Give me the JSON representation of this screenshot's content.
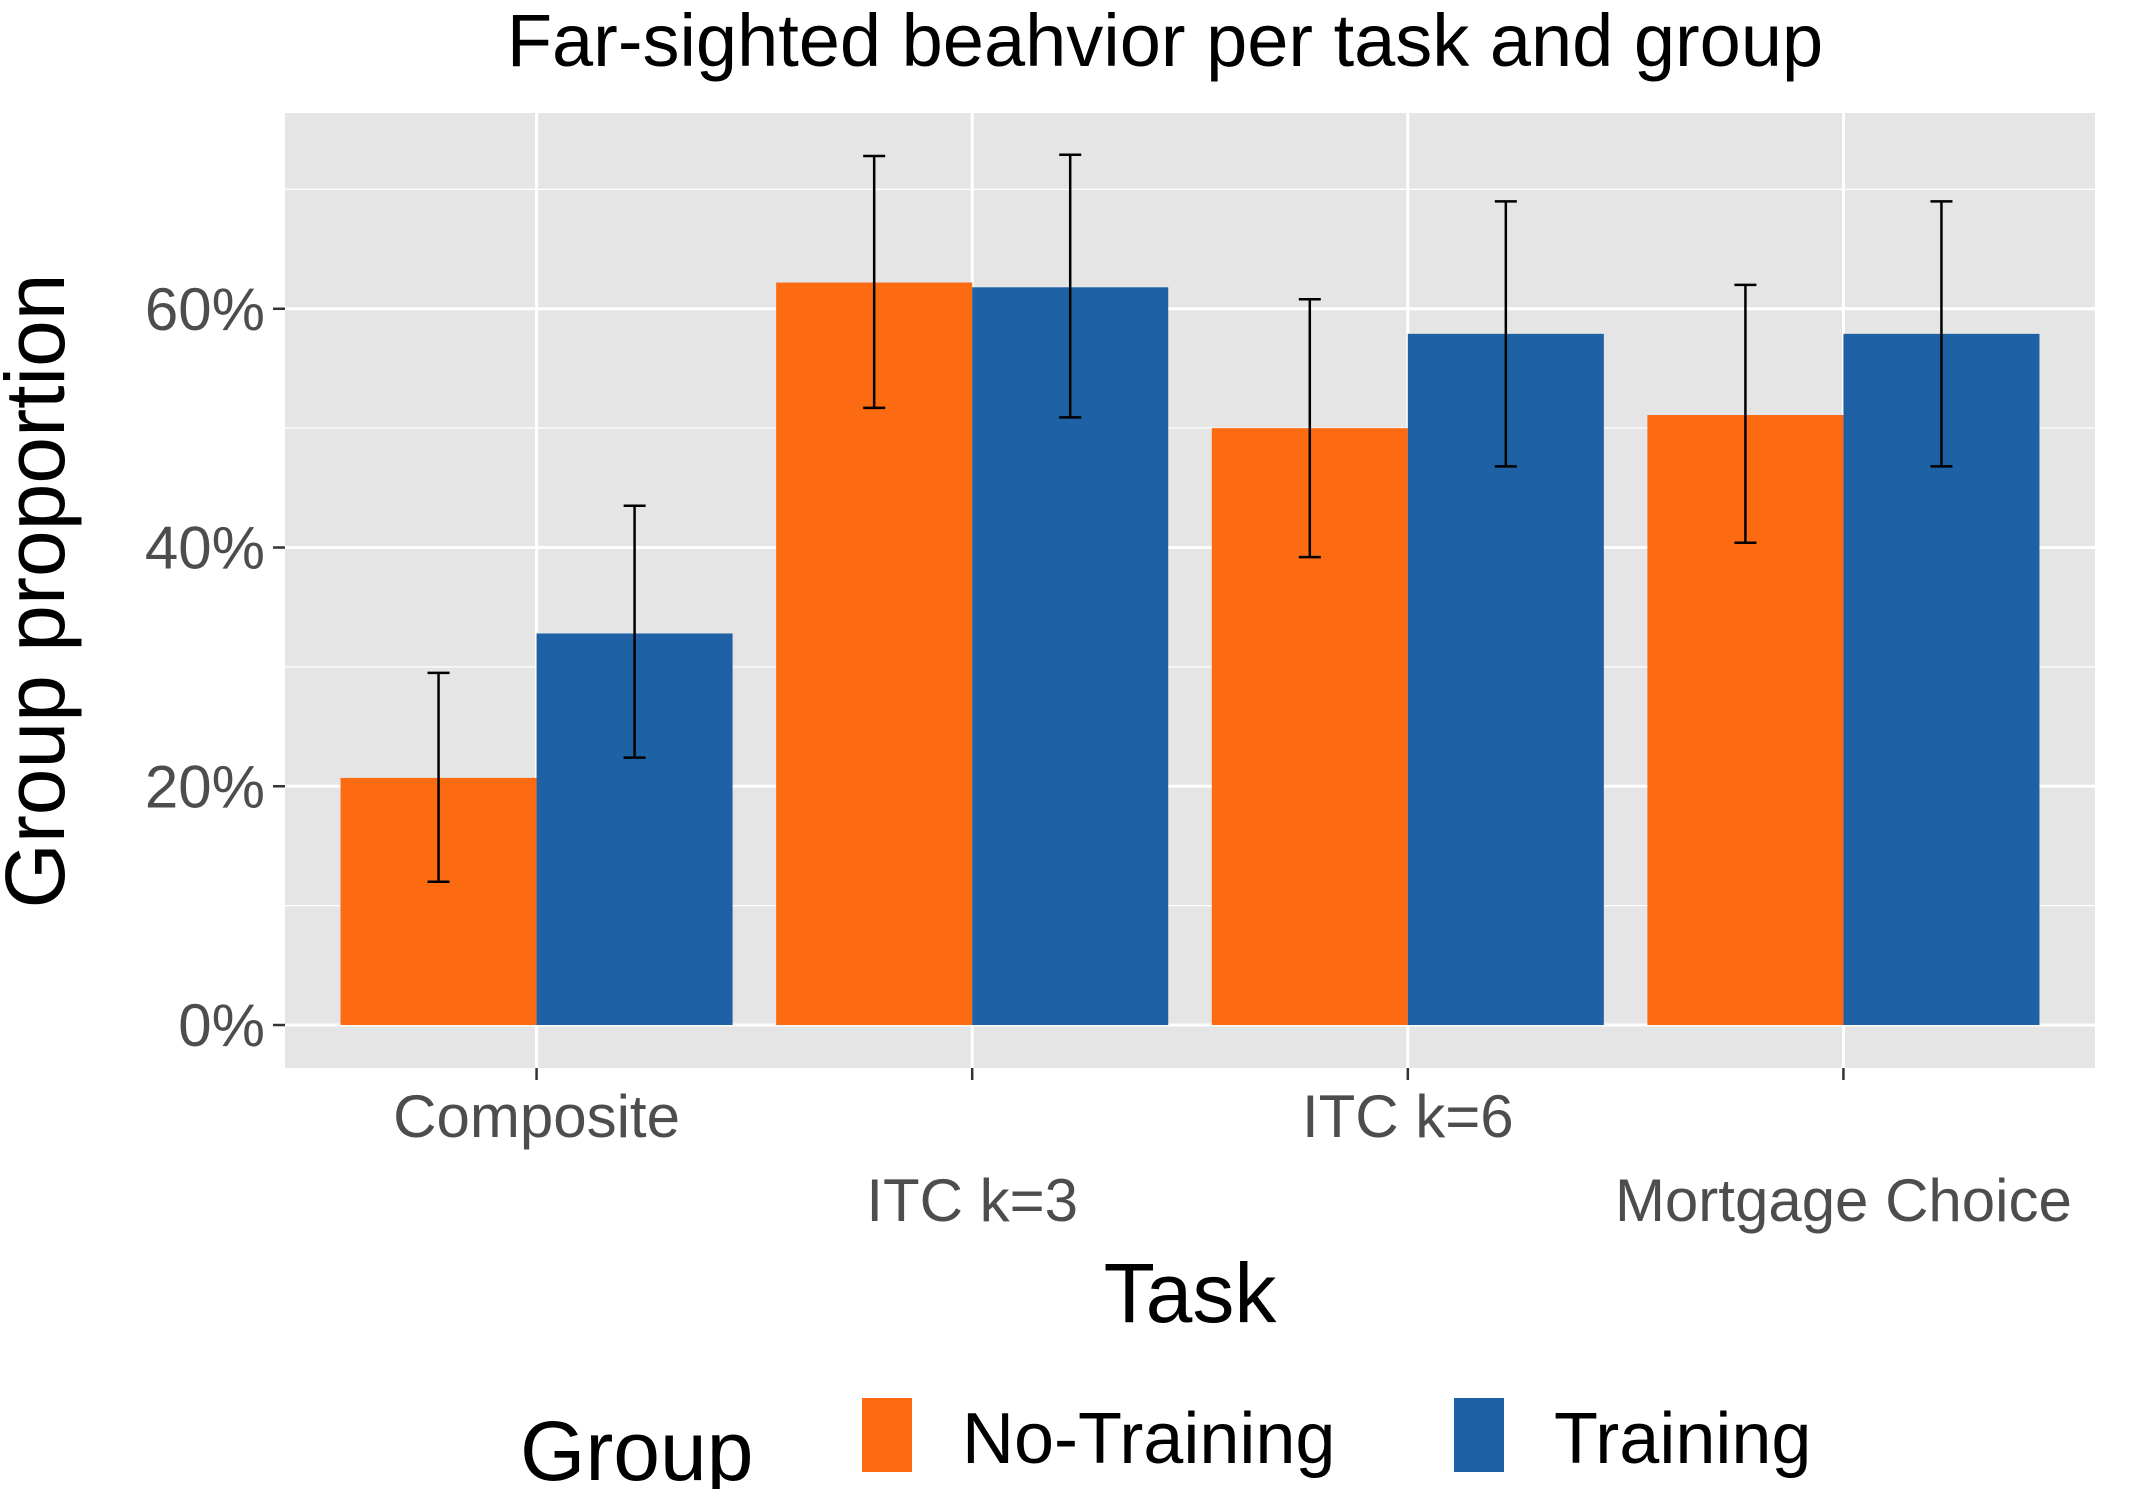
{
  "chart_data": {
    "type": "bar",
    "title": "Far-sighted beahvior per task and group",
    "xlabel": "Task",
    "ylabel": "Group proportion",
    "categories": [
      "Composite",
      "ITC k=3",
      "ITC k=6",
      "Mortgage Choice"
    ],
    "series": [
      {
        "name": "No-Training",
        "color": "#fc6a12",
        "values": [
          20.7,
          62.2,
          50.0,
          51.1
        ],
        "error_low": [
          12.0,
          51.7,
          39.2,
          40.4
        ],
        "error_high": [
          29.5,
          72.8,
          60.8,
          62.0
        ]
      },
      {
        "name": "Training",
        "color": "#1e61a5",
        "values": [
          32.8,
          61.8,
          57.9,
          57.9
        ],
        "error_low": [
          22.4,
          50.9,
          46.8,
          46.8
        ],
        "error_high": [
          43.5,
          72.9,
          69.0,
          69.0
        ]
      }
    ],
    "yticks": [
      0,
      20,
      40,
      60
    ],
    "ytick_labels": [
      "0%",
      "20%",
      "40%",
      "60%"
    ],
    "ylim": [
      -3.6,
      76.4
    ],
    "grid": true,
    "legend": {
      "title": "Group",
      "position": "bottom"
    },
    "panel_background": "#e5e5e5",
    "grid_color": "#ffffff"
  }
}
